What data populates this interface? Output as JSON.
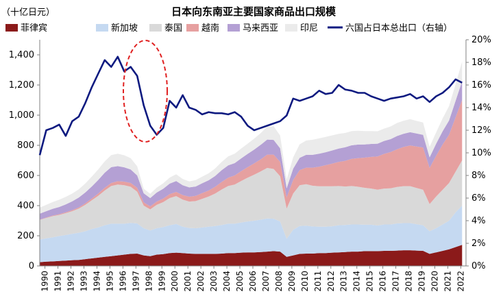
{
  "chart_data": {
    "type": "area",
    "title": "日本向东南亚主要国家商品出口规模",
    "unit_label": "（十亿日元）",
    "left_axis": {
      "ylim": [
        0,
        1500
      ],
      "ticks": [
        "0",
        "200",
        "400",
        "600",
        "800",
        "1,000",
        "1,200",
        "1,400"
      ]
    },
    "right_axis": {
      "ylim": [
        0,
        20
      ],
      "ticks": [
        "0%",
        "2%",
        "4%",
        "6%",
        "8%",
        "10%",
        "12%",
        "14%",
        "16%",
        "18%",
        "20%"
      ]
    },
    "x_ticks": [
      "1990",
      "1991",
      "1992",
      "1993",
      "1994",
      "1995",
      "1996",
      "1997",
      "1998",
      "1999",
      "2000",
      "2001",
      "2002",
      "2003",
      "2004",
      "2005",
      "2006",
      "2007",
      "2008",
      "2009",
      "2010",
      "2011",
      "2012",
      "2013",
      "2014",
      "2015",
      "2016",
      "2017",
      "2018",
      "2019",
      "2020",
      "2021",
      "2022"
    ],
    "x": [
      1990,
      1990.5,
      1991,
      1991.5,
      1992,
      1992.5,
      1993,
      1993.5,
      1994,
      1994.5,
      1995,
      1995.5,
      1996,
      1996.5,
      1997,
      1997.5,
      1998,
      1998.5,
      1999,
      1999.5,
      2000,
      2000.5,
      2001,
      2001.5,
      2002,
      2002.5,
      2003,
      2003.5,
      2004,
      2004.5,
      2005,
      2005.5,
      2006,
      2006.5,
      2007,
      2007.5,
      2008,
      2008.5,
      2009,
      2009.5,
      2010,
      2010.5,
      2011,
      2011.5,
      2012,
      2012.5,
      2013,
      2013.5,
      2014,
      2014.5,
      2015,
      2015.5,
      2016,
      2016.5,
      2017,
      2017.5,
      2018,
      2018.5,
      2019,
      2019.5,
      2020,
      2020.5,
      2021,
      2021.5,
      2022,
      2022.5
    ],
    "series": [
      {
        "name": "菲律宾",
        "color": "#8B1A1A",
        "values": [
          25,
          28,
          30,
          33,
          35,
          38,
          40,
          45,
          50,
          55,
          60,
          65,
          70,
          75,
          80,
          82,
          70,
          65,
          75,
          78,
          85,
          88,
          85,
          82,
          80,
          80,
          80,
          80,
          82,
          85,
          85,
          88,
          90,
          90,
          92,
          95,
          98,
          95,
          60,
          70,
          80,
          82,
          82,
          85,
          85,
          88,
          90,
          92,
          95,
          95,
          98,
          98,
          98,
          100,
          100,
          102,
          104,
          104,
          102,
          100,
          80,
          90,
          100,
          110,
          125,
          140
        ]
      },
      {
        "name": "新加坡",
        "color": "#C5D9F1",
        "values": [
          150,
          155,
          160,
          165,
          170,
          175,
          180,
          185,
          195,
          200,
          210,
          215,
          210,
          205,
          205,
          200,
          180,
          170,
          175,
          180,
          185,
          190,
          175,
          170,
          170,
          175,
          180,
          185,
          190,
          195,
          195,
          200,
          205,
          210,
          215,
          220,
          215,
          200,
          120,
          170,
          185,
          185,
          180,
          175,
          175,
          175,
          180,
          180,
          180,
          180,
          175,
          175,
          170,
          175,
          175,
          180,
          180,
          180,
          175,
          170,
          150,
          160,
          175,
          190,
          230,
          260
        ]
      },
      {
        "name": "泰国",
        "color": "#D9D9D9",
        "values": [
          130,
          135,
          140,
          140,
          145,
          150,
          160,
          175,
          190,
          210,
          230,
          250,
          260,
          255,
          240,
          210,
          150,
          140,
          155,
          165,
          180,
          185,
          180,
          175,
          180,
          190,
          200,
          215,
          235,
          250,
          260,
          275,
          290,
          305,
          320,
          335,
          330,
          300,
          200,
          240,
          270,
          275,
          270,
          268,
          268,
          265,
          260,
          255,
          255,
          250,
          245,
          240,
          238,
          238,
          240,
          242,
          245,
          245,
          240,
          235,
          180,
          210,
          230,
          250,
          270,
          300
        ]
      },
      {
        "name": "越南",
        "color": "#E6A0A0",
        "values": [
          2,
          3,
          4,
          5,
          6,
          7,
          8,
          10,
          12,
          15,
          18,
          20,
          22,
          24,
          25,
          26,
          22,
          20,
          22,
          24,
          26,
          28,
          30,
          32,
          35,
          38,
          40,
          45,
          50,
          55,
          60,
          65,
          70,
          75,
          80,
          88,
          95,
          95,
          75,
          90,
          100,
          110,
          120,
          130,
          140,
          150,
          160,
          170,
          180,
          190,
          200,
          210,
          220,
          230,
          240,
          250,
          260,
          270,
          275,
          280,
          240,
          270,
          300,
          320,
          360,
          400
        ]
      },
      {
        "name": "马来西亚",
        "color": "#B4A0D4",
        "values": [
          40,
          42,
          45,
          48,
          52,
          58,
          65,
          72,
          80,
          90,
          100,
          105,
          100,
          95,
          90,
          82,
          60,
          55,
          60,
          65,
          70,
          72,
          65,
          62,
          62,
          65,
          68,
          72,
          78,
          82,
          82,
          85,
          88,
          92,
          96,
          100,
          98,
          90,
          60,
          75,
          82,
          85,
          85,
          86,
          86,
          88,
          88,
          90,
          90,
          90,
          88,
          86,
          85,
          86,
          86,
          88,
          88,
          88,
          86,
          84,
          70,
          80,
          88,
          95,
          110,
          125
        ]
      },
      {
        "name": "印尼",
        "color": "#EBEBEB",
        "values": [
          40,
          42,
          45,
          48,
          50,
          52,
          55,
          60,
          65,
          70,
          75,
          80,
          82,
          80,
          75,
          60,
          30,
          28,
          32,
          36,
          40,
          45,
          42,
          40,
          42,
          44,
          46,
          50,
          55,
          60,
          62,
          65,
          68,
          72,
          78,
          85,
          90,
          85,
          60,
          75,
          90,
          95,
          100,
          102,
          102,
          100,
          98,
          95,
          94,
          92,
          88,
          85,
          82,
          82,
          84,
          86,
          86,
          86,
          84,
          82,
          70,
          75,
          85,
          95,
          110,
          130
        ]
      },
      {
        "name": "六国占日本总出口（右轴）",
        "color": "#0D1A80",
        "axis": "right",
        "values": [
          9.8,
          12.0,
          12.2,
          12.5,
          11.5,
          12.8,
          13.2,
          14.4,
          15.8,
          17.0,
          18.2,
          17.6,
          18.5,
          17.2,
          17.6,
          16.8,
          14.2,
          12.4,
          11.6,
          12.2,
          14.6,
          14.0,
          15.1,
          14.0,
          13.8,
          13.4,
          13.6,
          13.5,
          13.5,
          13.4,
          13.6,
          13.2,
          12.4,
          12.0,
          12.2,
          12.4,
          12.6,
          12.8,
          13.3,
          14.8,
          14.6,
          14.8,
          15.0,
          15.5,
          15.2,
          15.3,
          16.0,
          15.6,
          15.5,
          15.3,
          15.3,
          15.0,
          14.8,
          14.6,
          14.8,
          14.9,
          15.0,
          15.2,
          14.8,
          15.0,
          14.5,
          15.0,
          15.3,
          15.8,
          16.5,
          16.2
        ]
      }
    ]
  }
}
